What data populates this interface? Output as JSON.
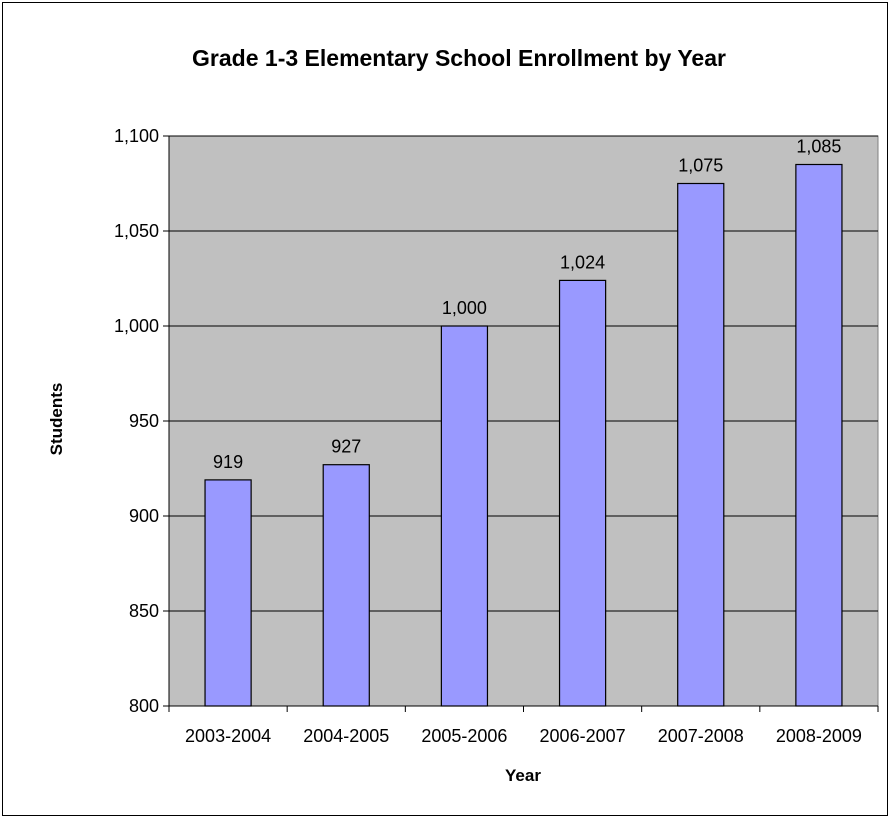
{
  "chart_data": {
    "type": "bar",
    "title": "Grade 1-3 Elementary School Enrollment by Year",
    "xlabel": "Year",
    "ylabel": "Students",
    "categories": [
      "2003-2004",
      "2004-2005",
      "2005-2006",
      "2006-2007",
      "2007-2008",
      "2008-2009"
    ],
    "values": [
      919,
      927,
      1000,
      1024,
      1075,
      1085
    ],
    "data_labels": [
      "919",
      "927",
      "1,000",
      "1,024",
      "1,075",
      "1,085"
    ],
    "ylim": [
      800,
      1100
    ],
    "yticks": [
      800,
      850,
      900,
      950,
      1000,
      1050,
      1100
    ],
    "ytick_labels": [
      "800",
      "850",
      "900",
      "950",
      "1,000",
      "1,050",
      "1,100"
    ],
    "grid": true,
    "legend": "none",
    "colors": {
      "bar_fill": "#9999ff",
      "bar_stroke": "#000000",
      "plot_background": "#c0c0c0",
      "gridline": "#000000"
    }
  }
}
